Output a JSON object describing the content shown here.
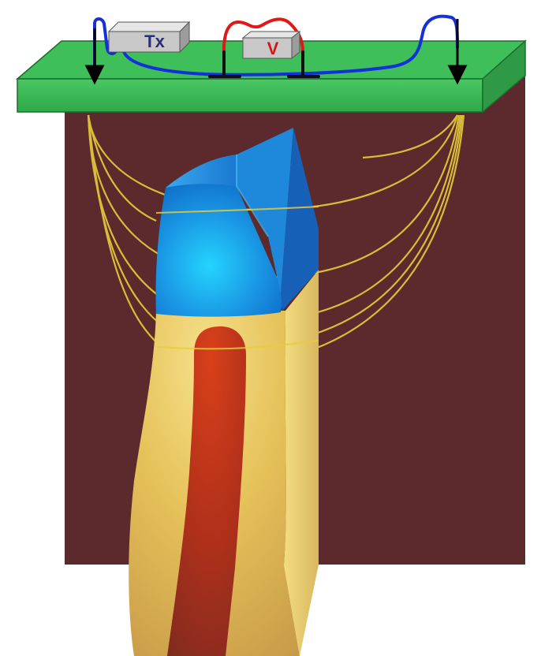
{
  "devices": {
    "transmitter": {
      "label": "Tx"
    },
    "voltmeter": {
      "label": "V"
    }
  },
  "colors": {
    "background": "#ffffff",
    "earth_block": "#5c2a2c",
    "surface_plate": "#3fbf5a",
    "surface_plate_edge": "#1f6b2e",
    "device_box": "#c8c8c8",
    "transmitter_label": "#2c2c78",
    "voltmeter_label": "#d01818",
    "transmitter_wire": "#1430d8",
    "receiver_wire": "#e01818",
    "current_lines": "#e8cc3a",
    "conductive_body_top": "#1a90e0",
    "host_column": "#e6c25a",
    "inner_core": "#c0341a"
  },
  "icons": {
    "current_arrows": "arrow-down-icon",
    "electrodes": "electrode-icon"
  }
}
